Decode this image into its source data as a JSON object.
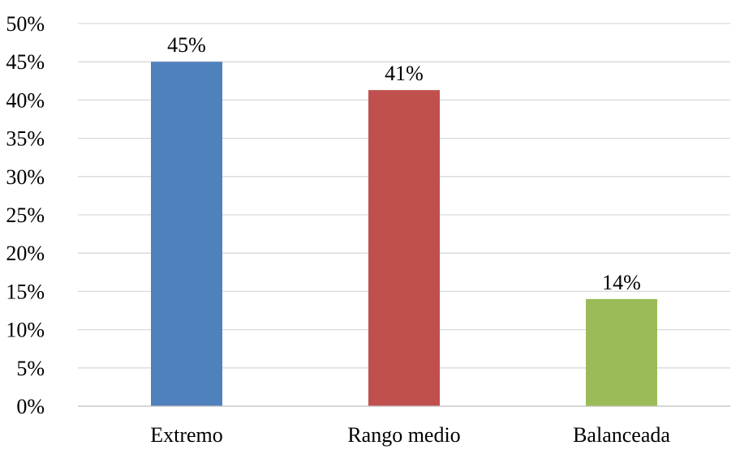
{
  "chart_data": {
    "type": "bar",
    "title": "",
    "xlabel": "",
    "ylabel": "",
    "categories": [
      "Extremo",
      "Rango medio",
      "Balanceada"
    ],
    "values": [
      45,
      41.3,
      14
    ],
    "data_labels": [
      "45%",
      "41%",
      "14%"
    ],
    "colors": [
      "#4F81BD",
      "#C0504D",
      "#9BBB59"
    ],
    "ylim": [
      0,
      50
    ],
    "y_ticks": [
      0,
      5,
      10,
      15,
      20,
      25,
      30,
      35,
      40,
      45,
      50
    ],
    "y_tick_labels": [
      "0%",
      "5%",
      "10%",
      "15%",
      "20%",
      "25%",
      "30%",
      "35%",
      "40%",
      "45%",
      "50%"
    ],
    "grid": true,
    "legend": "none"
  }
}
